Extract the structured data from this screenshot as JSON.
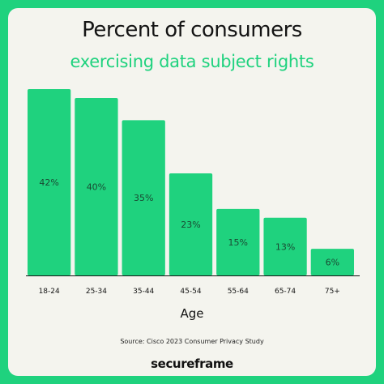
{
  "chart_data": {
    "type": "bar",
    "title": "Percent of consumers",
    "subtitle": "exercising data subject rights",
    "xlabel": "Age",
    "ylabel": "",
    "categories": [
      "18-24",
      "25-34",
      "35-44",
      "45-54",
      "55-64",
      "65-74",
      "75+"
    ],
    "values": [
      42,
      40,
      35,
      23,
      15,
      13,
      6
    ],
    "value_labels": [
      "42%",
      "40%",
      "35%",
      "23%",
      "15%",
      "13%",
      "6%"
    ],
    "ylim": [
      0,
      42
    ],
    "grid": false,
    "bar_color": "#1fd27e",
    "source": "Source: Cisco 2023 Consumer Privacy Study"
  },
  "brand": "secureframe",
  "colors": {
    "accent": "#1fd27e",
    "background": "#f4f4ee",
    "text": "#141414"
  }
}
